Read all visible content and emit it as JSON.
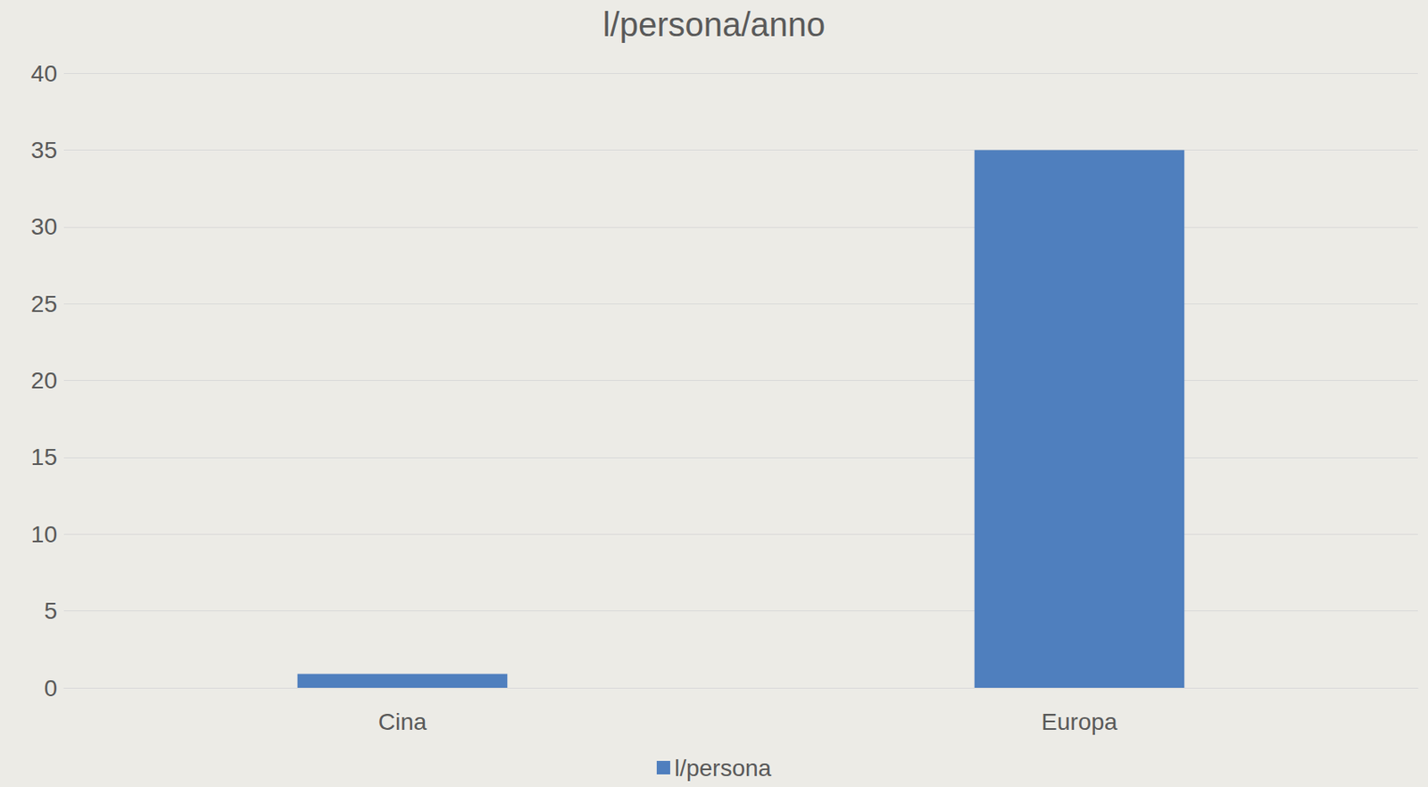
{
  "chart_data": {
    "type": "bar",
    "title": "l/persona/anno",
    "categories": [
      "Cina",
      "Europa"
    ],
    "series": [
      {
        "name": "l/persona",
        "color": "#4f7fbe",
        "values": [
          0.9,
          35
        ]
      }
    ],
    "ylim": [
      0,
      40
    ],
    "yticks": [
      0,
      5,
      10,
      15,
      20,
      25,
      30,
      35,
      40
    ],
    "grid": true,
    "legend": "bottom"
  }
}
